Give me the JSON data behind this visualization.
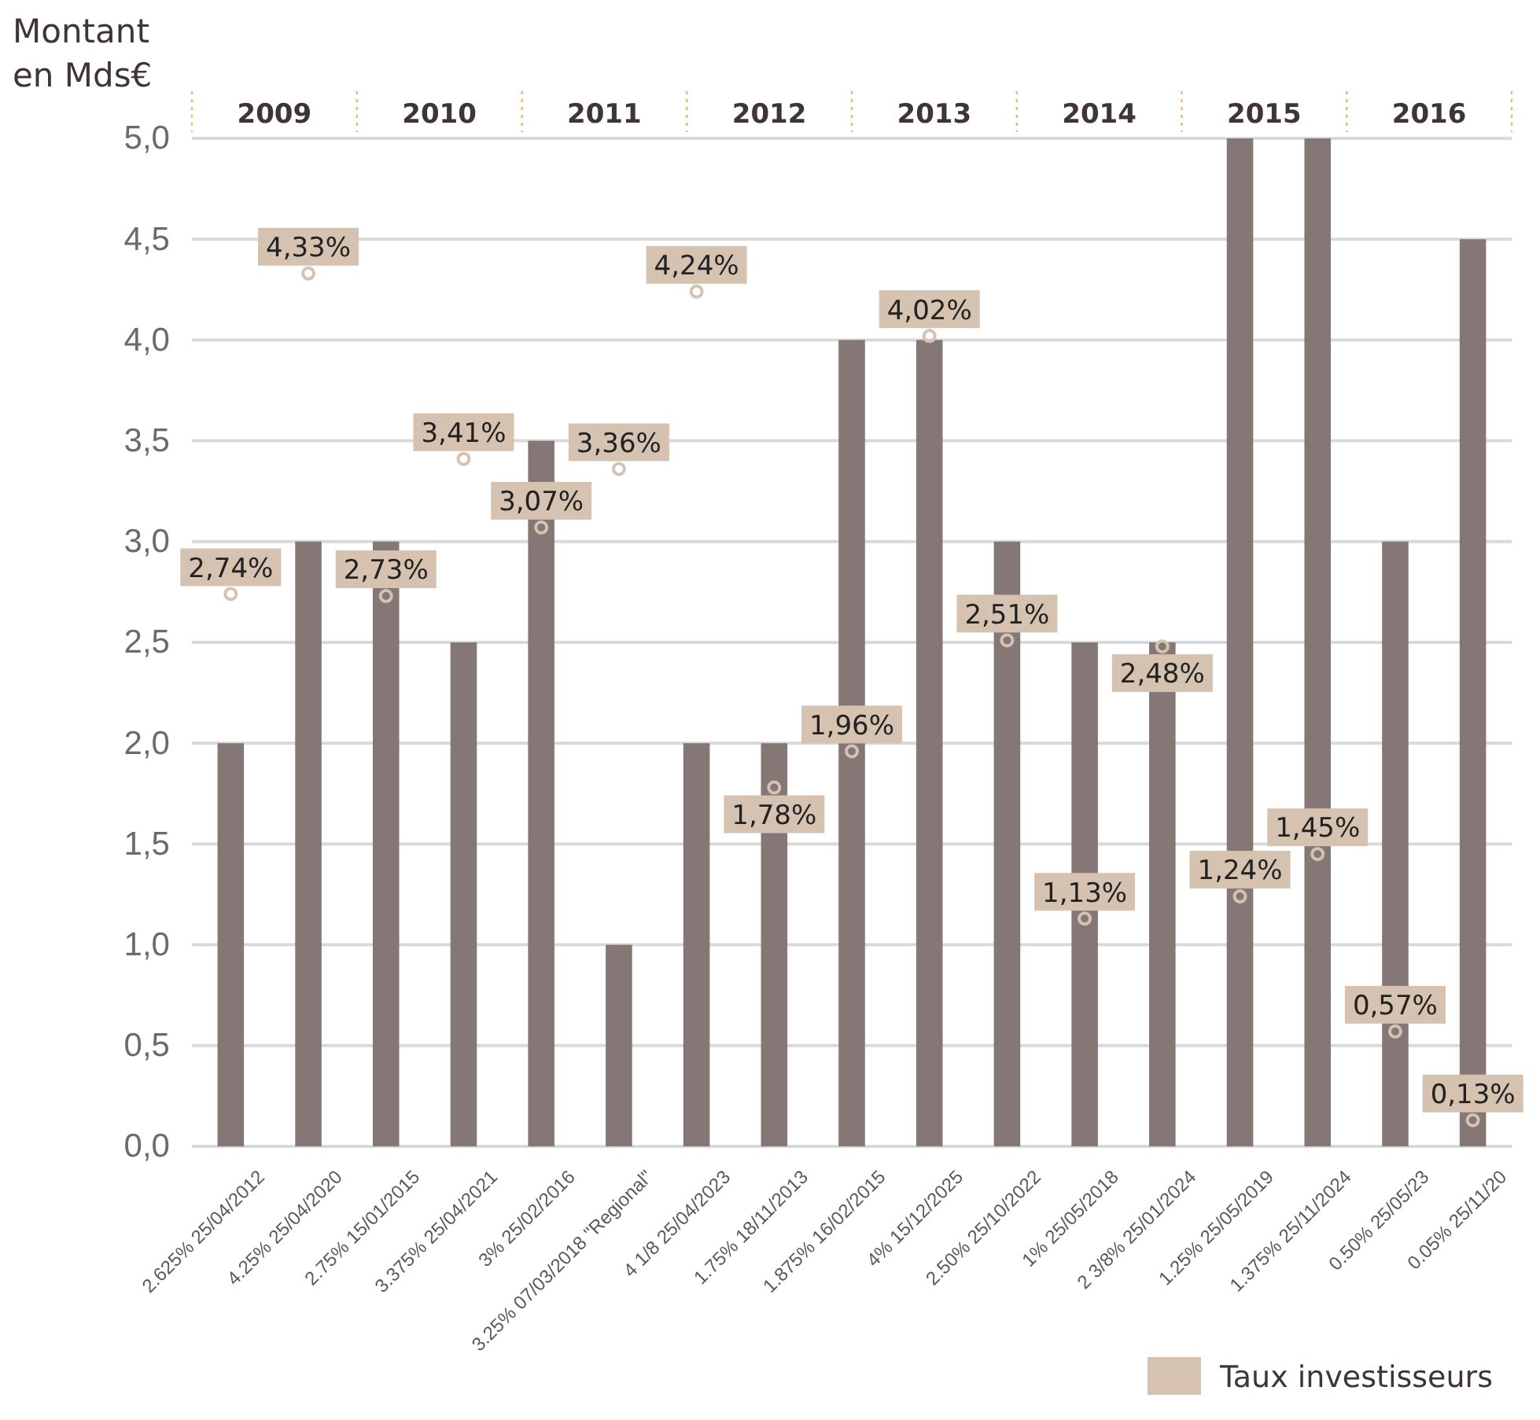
{
  "chart_data": {
    "type": "bar",
    "ylabel": "Montant en Mds€",
    "categories": [
      "2.625% 25/04/2012",
      "4.25% 25/04/2020",
      "2.75% 15/01/2015",
      "3.375% 25/04/2021",
      "3% 25/02/2016",
      "3.25% 07/03/2018 \"Regional\"",
      "4 1/8 25/04/2023",
      "1.75% 18/11/2013",
      "1.875% 16/02/2015",
      "4% 15/12/2025",
      "2.50% 25/10/2022",
      "1% 25/05/2018",
      "2 3/8% 25/01/2024",
      "1.25% 25/05/2019",
      "1.375% 25/11/2024",
      "0.50% 25/05/23",
      "0.05% 25/11/20"
    ],
    "series": [
      {
        "color": "#857775",
        "values": [
          2,
          3,
          3,
          2.5,
          3.5,
          1,
          2,
          2,
          4,
          4,
          3,
          2.5,
          2.5,
          5,
          5,
          3,
          4.5
        ]
      },
      {
        "type": "scatter",
        "name": "Taux investisseurs",
        "color": "#d5c2b0",
        "marker": "circle",
        "values": [
          2.74,
          4.33,
          2.73,
          3.41,
          3.07,
          3.36,
          4.24,
          1.78,
          1.96,
          4.02,
          2.51,
          1.13,
          2.48,
          1.24,
          1.45,
          0.57,
          0.13
        ],
        "value_labels": [
          "2,74%",
          "4,33%",
          "2,73%",
          "3,41%",
          "3,07%",
          "3,36%",
          "4,24%",
          "1,78%",
          "1,96%",
          "4,02%",
          "2,51%",
          "1,13%",
          "2,48%",
          "1,24%",
          "1,45%",
          "0,57%",
          "0,13%"
        ]
      }
    ],
    "ylim": [
      0,
      5
    ],
    "yticks": [
      {
        "value": 0,
        "label": "0,0"
      },
      {
        "value": 0.5,
        "label": "0,5"
      },
      {
        "value": 1,
        "label": "1,0"
      },
      {
        "value": 1.5,
        "label": "1,5"
      },
      {
        "value": 2,
        "label": "2,0"
      },
      {
        "value": 2.5,
        "label": "2,5"
      },
      {
        "value": 3,
        "label": "3,0"
      },
      {
        "value": 3.5,
        "label": "3,5"
      },
      {
        "value": 4,
        "label": "4,0"
      },
      {
        "value": 4.5,
        "label": "4,5"
      },
      {
        "value": 5,
        "label": "5,0"
      }
    ],
    "annotations": [
      "2009",
      "2010",
      "2011",
      "2012",
      "2013",
      "2014",
      "2015",
      "2016"
    ],
    "grid": "y",
    "legend": "bottom right"
  }
}
